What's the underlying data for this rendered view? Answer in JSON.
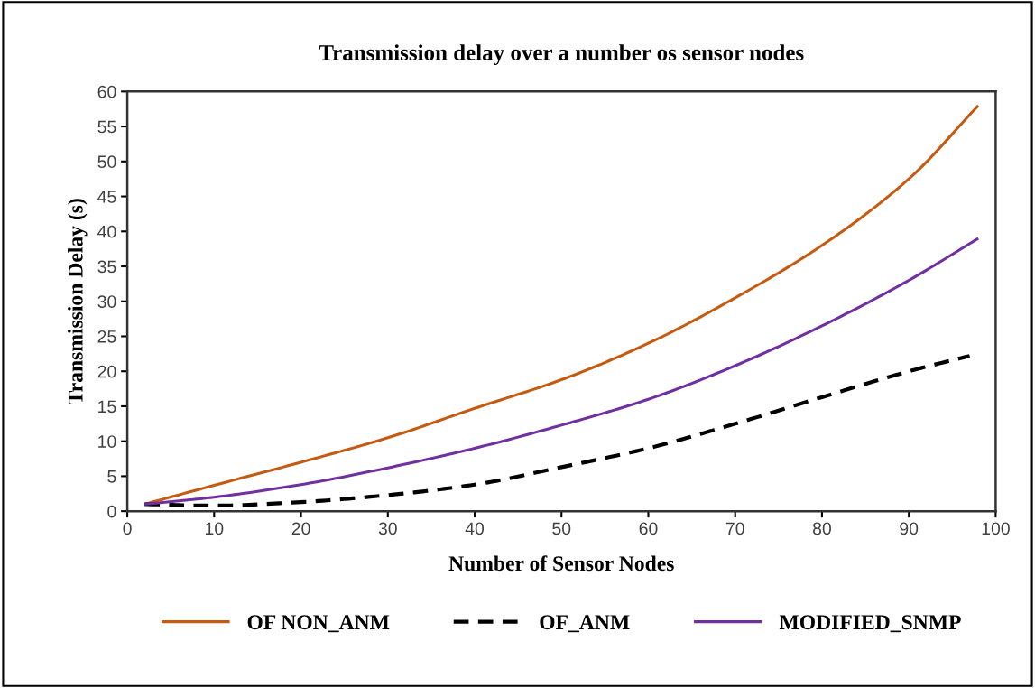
{
  "chart_data": {
    "type": "line",
    "title": "Transmission delay over a number os sensor nodes",
    "xlabel": "Number of Sensor Nodes",
    "ylabel": "Transmission Delay (s)",
    "xlim": [
      0,
      100
    ],
    "xticks": [
      0,
      10,
      20,
      30,
      40,
      50,
      60,
      70,
      80,
      90,
      100
    ],
    "ylim": [
      0,
      60
    ],
    "yticks": [
      0,
      5,
      10,
      15,
      20,
      25,
      30,
      35,
      40,
      45,
      50,
      55,
      60
    ],
    "grid": false,
    "legend": "bottom",
    "marker": "none",
    "series": [
      {
        "name": "OF NON_ANM",
        "color": "#c55a11",
        "line_style": "solid",
        "x": [
          2,
          10,
          20,
          30,
          40,
          50,
          60,
          70,
          80,
          90,
          98
        ],
        "values": [
          1,
          3.7,
          7,
          10.5,
          14.7,
          18.8,
          24,
          30.5,
          38,
          47.5,
          58
        ]
      },
      {
        "name": "OF_ANM",
        "color": "#000000",
        "line_style": "dashed",
        "x": [
          2,
          10,
          20,
          30,
          40,
          50,
          60,
          70,
          80,
          90,
          97
        ],
        "values": [
          1,
          0.8,
          1.3,
          2.3,
          3.8,
          6.3,
          9,
          12.5,
          16.3,
          20,
          22.2
        ]
      },
      {
        "name": "MODIFIED_SNMP",
        "color": "#7030a0",
        "line_style": "solid",
        "x": [
          2,
          10,
          20,
          30,
          40,
          50,
          60,
          70,
          80,
          90,
          98
        ],
        "values": [
          1,
          2,
          3.8,
          6.2,
          9,
          12.3,
          16,
          20.8,
          26.5,
          33,
          39
        ]
      }
    ]
  }
}
